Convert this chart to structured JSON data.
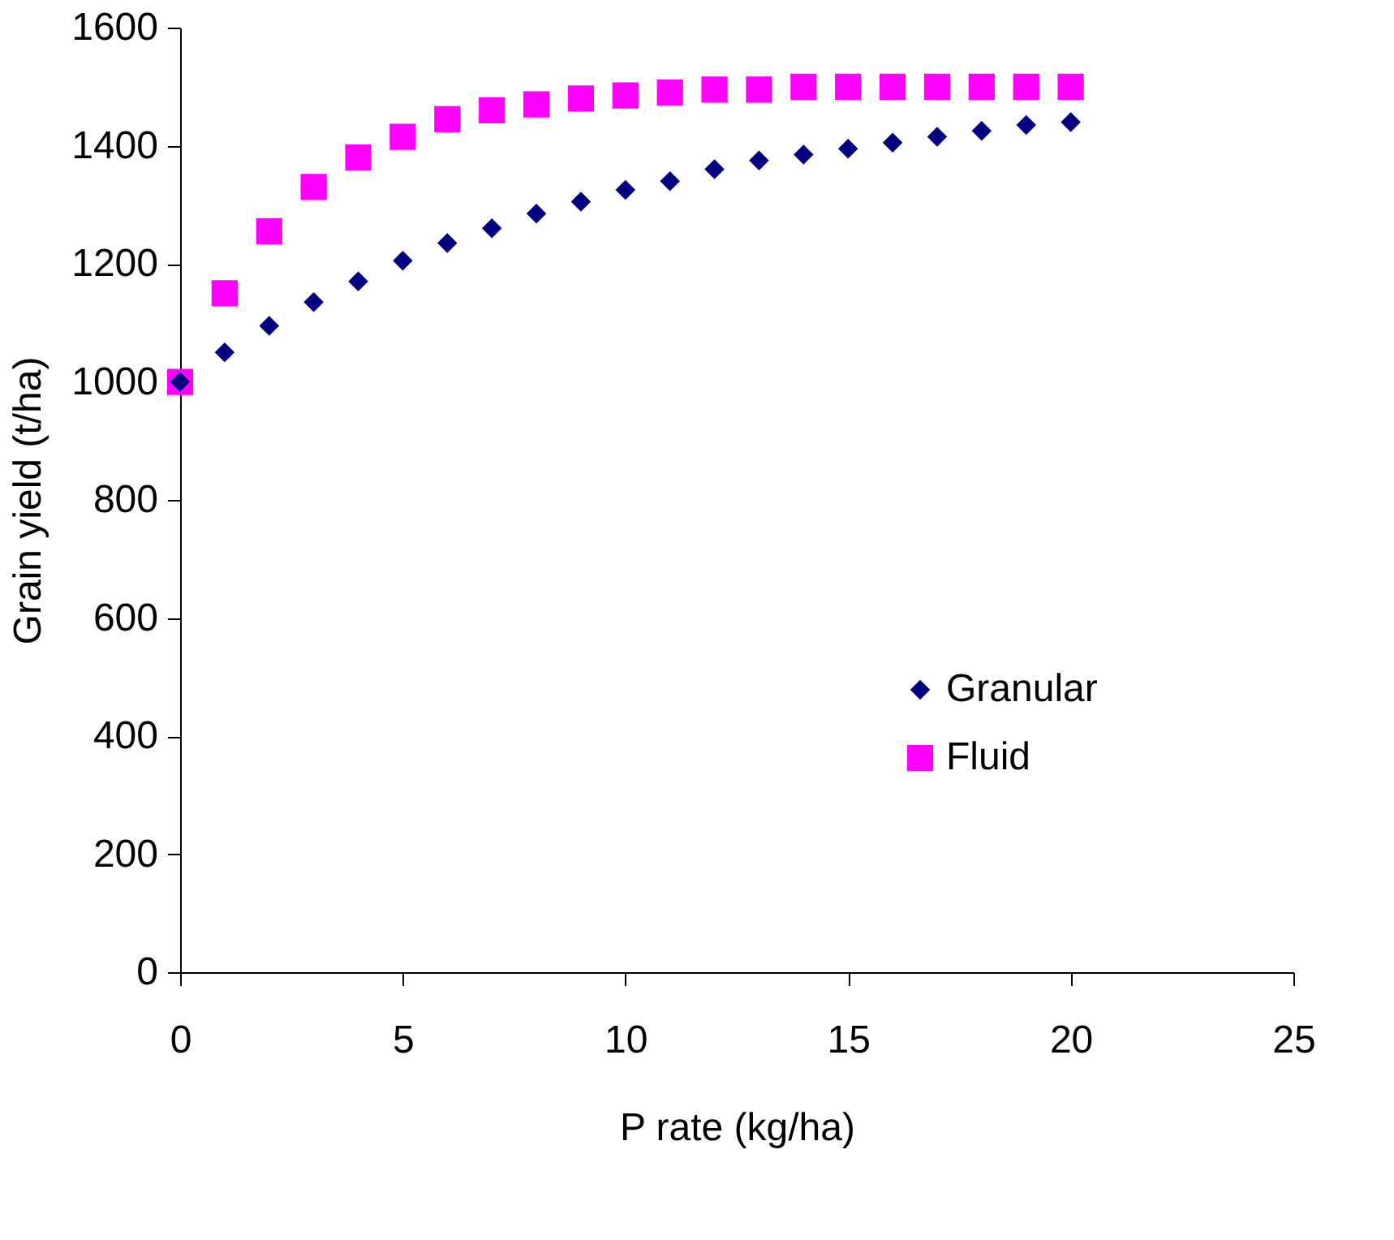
{
  "chart_data": {
    "type": "scatter",
    "xlabel": "P rate (kg/ha)",
    "ylabel": "Grain yield  (t/ha)",
    "x": [
      0,
      1,
      2,
      3,
      4,
      5,
      6,
      7,
      8,
      9,
      10,
      11,
      12,
      13,
      14,
      15,
      16,
      17,
      18,
      19,
      20
    ],
    "series": [
      {
        "name": "Granular",
        "color": "#000080",
        "marker": "diamond",
        "values": [
          1000,
          1050,
          1095,
          1135,
          1170,
          1205,
          1235,
          1260,
          1285,
          1305,
          1325,
          1340,
          1360,
          1375,
          1385,
          1395,
          1405,
          1415,
          1425,
          1435,
          1440
        ]
      },
      {
        "name": "Fluid",
        "color": "#ff00ff",
        "marker": "square",
        "values": [
          1000,
          1150,
          1255,
          1330,
          1380,
          1415,
          1445,
          1460,
          1470,
          1480,
          1485,
          1490,
          1495,
          1495,
          1500,
          1500,
          1500,
          1500,
          1500,
          1500,
          1500
        ]
      }
    ],
    "xlim": [
      0,
      25
    ],
    "xticks": [
      0,
      5,
      10,
      15,
      20,
      25
    ],
    "ylim": [
      0,
      1600
    ],
    "yticks": [
      0,
      200,
      400,
      600,
      800,
      1000,
      1200,
      1400,
      1600
    ],
    "grid": false,
    "legend": "bottom right"
  }
}
